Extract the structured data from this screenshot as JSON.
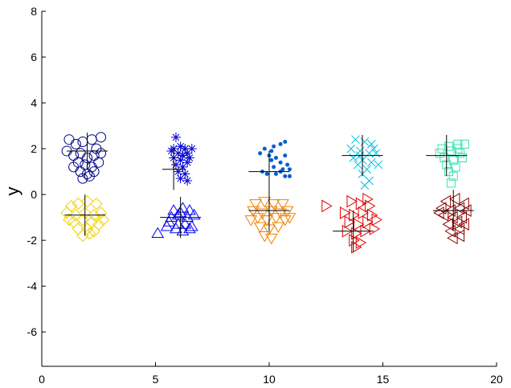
{
  "chart_data": {
    "type": "scatter",
    "title": "",
    "xlabel": "",
    "ylabel": "y",
    "xlim": [
      0,
      20
    ],
    "ylim": [
      -7.5,
      8
    ],
    "xticks": [
      0,
      5,
      10,
      15,
      20
    ],
    "yticks": [
      -6,
      -4,
      -2,
      0,
      2,
      4,
      6,
      8
    ],
    "grid": false,
    "legend": "none",
    "series": [
      {
        "marker": "circle",
        "color": "#000080",
        "center": [
          2.0,
          1.9
        ],
        "err_x": 0.9,
        "err_y": 0.8,
        "points": [
          [
            1.2,
            2.4
          ],
          [
            1.5,
            2.2
          ],
          [
            1.8,
            2.3
          ],
          [
            2.2,
            2.4
          ],
          [
            2.6,
            2.5
          ],
          [
            1.1,
            1.9
          ],
          [
            1.4,
            1.7
          ],
          [
            1.7,
            1.8
          ],
          [
            2.0,
            1.6
          ],
          [
            2.3,
            1.7
          ],
          [
            2.6,
            1.8
          ],
          [
            1.6,
            1.4
          ],
          [
            1.9,
            1.3
          ],
          [
            2.2,
            1.2
          ],
          [
            2.5,
            1.4
          ],
          [
            1.7,
            1.0
          ],
          [
            2.0,
            0.9
          ],
          [
            2.3,
            1.0
          ],
          [
            1.8,
            0.7
          ],
          [
            2.1,
            0.8
          ],
          [
            1.4,
            1.2
          ],
          [
            2.4,
            2.0
          ]
        ]
      },
      {
        "marker": "asterisk",
        "color": "#0000D0",
        "center": [
          5.8,
          1.1
        ],
        "err_x": 0.5,
        "err_y": 0.9,
        "points": [
          [
            5.9,
            2.5
          ],
          [
            6.1,
            2.1
          ],
          [
            6.3,
            2.0
          ],
          [
            5.7,
            1.9
          ],
          [
            6.0,
            1.8
          ],
          [
            6.4,
            1.8
          ],
          [
            5.8,
            1.6
          ],
          [
            6.1,
            1.5
          ],
          [
            6.5,
            1.6
          ],
          [
            5.9,
            1.3
          ],
          [
            6.2,
            1.2
          ],
          [
            6.4,
            1.4
          ],
          [
            6.0,
            1.0
          ],
          [
            6.3,
            0.9
          ],
          [
            6.1,
            0.7
          ],
          [
            6.4,
            0.6
          ],
          [
            5.8,
            2.0
          ],
          [
            6.6,
            2.0
          ],
          [
            6.2,
            1.7
          ]
        ]
      },
      {
        "marker": "dot",
        "color": "#0060D0",
        "center": [
          10.0,
          1.0
        ],
        "err_x": 0.9,
        "err_y": 0.9,
        "points": [
          [
            9.8,
            2.0
          ],
          [
            10.2,
            2.1
          ],
          [
            10.5,
            2.2
          ],
          [
            10.7,
            2.3
          ],
          [
            9.6,
            1.8
          ],
          [
            10.0,
            1.7
          ],
          [
            10.3,
            1.6
          ],
          [
            10.7,
            1.7
          ],
          [
            10.1,
            1.5
          ],
          [
            10.5,
            1.4
          ],
          [
            10.8,
            1.3
          ],
          [
            10.2,
            1.2
          ],
          [
            10.6,
            1.1
          ],
          [
            10.9,
            1.1
          ],
          [
            9.7,
            1.0
          ],
          [
            10.3,
            0.9
          ],
          [
            10.7,
            0.8
          ],
          [
            10.9,
            0.8
          ],
          [
            9.9,
            0.9
          ],
          [
            10.5,
            1.0
          ],
          [
            10.1,
            1.9
          ]
        ]
      },
      {
        "marker": "x",
        "color": "#00C0E0",
        "center": [
          14.1,
          1.7
        ],
        "err_x": 0.9,
        "err_y": 0.9,
        "points": [
          [
            13.8,
            2.4
          ],
          [
            14.2,
            2.3
          ],
          [
            14.5,
            2.2
          ],
          [
            13.6,
            2.0
          ],
          [
            14.0,
            1.9
          ],
          [
            14.4,
            1.8
          ],
          [
            14.7,
            1.8
          ],
          [
            13.7,
            1.6
          ],
          [
            14.1,
            1.5
          ],
          [
            14.5,
            1.4
          ],
          [
            14.8,
            1.3
          ],
          [
            13.9,
            1.3
          ],
          [
            14.3,
            1.1
          ],
          [
            14.1,
            0.9
          ],
          [
            14.4,
            0.6
          ],
          [
            14.2,
            0.4
          ],
          [
            14.0,
            1.7
          ],
          [
            14.6,
            2.0
          ]
        ]
      },
      {
        "marker": "square",
        "color": "#40E0B0",
        "center": [
          17.8,
          1.7
        ],
        "err_x": 0.9,
        "err_y": 0.9,
        "points": [
          [
            17.6,
            2.0
          ],
          [
            17.9,
            2.1
          ],
          [
            18.3,
            2.2
          ],
          [
            18.6,
            2.2
          ],
          [
            17.5,
            1.8
          ],
          [
            18.0,
            1.9
          ],
          [
            18.4,
            1.8
          ],
          [
            17.7,
            1.6
          ],
          [
            18.1,
            1.5
          ],
          [
            18.5,
            1.6
          ],
          [
            17.8,
            1.3
          ],
          [
            18.2,
            1.2
          ],
          [
            17.9,
            1.0
          ],
          [
            18.1,
            0.8
          ],
          [
            18.0,
            0.5
          ],
          [
            18.3,
            2.0
          ]
        ]
      },
      {
        "marker": "diamond",
        "color": "#F0D000",
        "center": [
          1.9,
          -0.9
        ],
        "err_x": 0.9,
        "err_y": 0.9,
        "points": [
          [
            1.3,
            -0.5
          ],
          [
            1.6,
            -0.4
          ],
          [
            2.0,
            -0.3
          ],
          [
            2.4,
            -0.4
          ],
          [
            1.1,
            -0.8
          ],
          [
            1.5,
            -0.9
          ],
          [
            1.9,
            -0.8
          ],
          [
            2.3,
            -0.9
          ],
          [
            2.6,
            -0.8
          ],
          [
            1.4,
            -1.2
          ],
          [
            1.8,
            -1.1
          ],
          [
            2.2,
            -1.2
          ],
          [
            2.5,
            -1.3
          ],
          [
            1.6,
            -1.5
          ],
          [
            2.0,
            -1.5
          ],
          [
            2.3,
            -1.6
          ],
          [
            1.8,
            -1.8
          ],
          [
            2.1,
            -1.7
          ],
          [
            1.2,
            -1.1
          ],
          [
            2.7,
            -1.1
          ]
        ]
      },
      {
        "marker": "triangle-up",
        "color": "#0000F0",
        "center": [
          6.1,
          -1.0
        ],
        "err_x": 0.9,
        "err_y": 0.9,
        "points": [
          [
            5.8,
            -0.7
          ],
          [
            6.2,
            -0.6
          ],
          [
            6.5,
            -0.7
          ],
          [
            5.7,
            -1.0
          ],
          [
            6.0,
            -0.9
          ],
          [
            6.4,
            -1.0
          ],
          [
            6.7,
            -0.9
          ],
          [
            5.6,
            -1.2
          ],
          [
            6.0,
            -1.3
          ],
          [
            6.3,
            -1.3
          ],
          [
            6.6,
            -1.4
          ],
          [
            5.9,
            -1.5
          ],
          [
            6.2,
            -1.6
          ],
          [
            6.5,
            -1.5
          ],
          [
            5.1,
            -1.7
          ],
          [
            5.5,
            -1.4
          ],
          [
            6.1,
            -0.8
          ]
        ]
      },
      {
        "marker": "triangle-down",
        "color": "#F08000",
        "center": [
          10.0,
          -0.7
        ],
        "err_x": 0.9,
        "err_y": 0.9,
        "points": [
          [
            9.4,
            -0.4
          ],
          [
            9.8,
            -0.3
          ],
          [
            10.2,
            -0.4
          ],
          [
            10.6,
            -0.4
          ],
          [
            9.3,
            -0.7
          ],
          [
            9.7,
            -0.8
          ],
          [
            10.1,
            -0.7
          ],
          [
            10.5,
            -0.8
          ],
          [
            10.8,
            -0.7
          ],
          [
            9.5,
            -1.0
          ],
          [
            9.9,
            -1.1
          ],
          [
            10.3,
            -1.0
          ],
          [
            10.7,
            -1.1
          ],
          [
            9.6,
            -1.4
          ],
          [
            10.0,
            -1.5
          ],
          [
            10.4,
            -1.4
          ],
          [
            9.8,
            -1.8
          ],
          [
            10.1,
            -1.9
          ],
          [
            10.9,
            -1.0
          ],
          [
            9.2,
            -1.1
          ]
        ]
      },
      {
        "marker": "triangle-right",
        "color": "#E00000",
        "center": [
          13.7,
          -1.6
        ],
        "err_x": 0.9,
        "err_y": 0.9,
        "points": [
          [
            12.5,
            -0.5
          ],
          [
            13.6,
            -0.3
          ],
          [
            14.0,
            -0.4
          ],
          [
            14.4,
            -0.5
          ],
          [
            13.3,
            -0.8
          ],
          [
            13.7,
            -0.9
          ],
          [
            14.1,
            -0.8
          ],
          [
            14.5,
            -0.9
          ],
          [
            13.5,
            -1.2
          ],
          [
            13.9,
            -1.3
          ],
          [
            14.3,
            -1.2
          ],
          [
            14.7,
            -1.1
          ],
          [
            13.4,
            -1.6
          ],
          [
            13.8,
            -1.7
          ],
          [
            14.2,
            -1.6
          ],
          [
            13.7,
            -2.0
          ],
          [
            14.0,
            -2.1
          ],
          [
            13.8,
            -2.3
          ],
          [
            14.6,
            -1.5
          ],
          [
            14.3,
            -0.2
          ]
        ]
      },
      {
        "marker": "triangle-left",
        "color": "#900000",
        "center": [
          18.1,
          -0.7
        ],
        "err_x": 0.9,
        "err_y": 0.9,
        "points": [
          [
            17.8,
            -0.3
          ],
          [
            18.2,
            -0.2
          ],
          [
            18.6,
            -0.4
          ],
          [
            17.6,
            -0.6
          ],
          [
            18.0,
            -0.7
          ],
          [
            18.4,
            -0.6
          ],
          [
            18.7,
            -0.7
          ],
          [
            17.7,
            -0.9
          ],
          [
            18.1,
            -1.0
          ],
          [
            18.5,
            -1.0
          ],
          [
            17.9,
            -1.3
          ],
          [
            18.3,
            -1.2
          ],
          [
            18.6,
            -1.3
          ],
          [
            18.0,
            -1.6
          ],
          [
            18.4,
            -1.5
          ],
          [
            18.1,
            -1.9
          ],
          [
            18.4,
            -1.8
          ],
          [
            17.5,
            -0.8
          ]
        ]
      }
    ]
  }
}
